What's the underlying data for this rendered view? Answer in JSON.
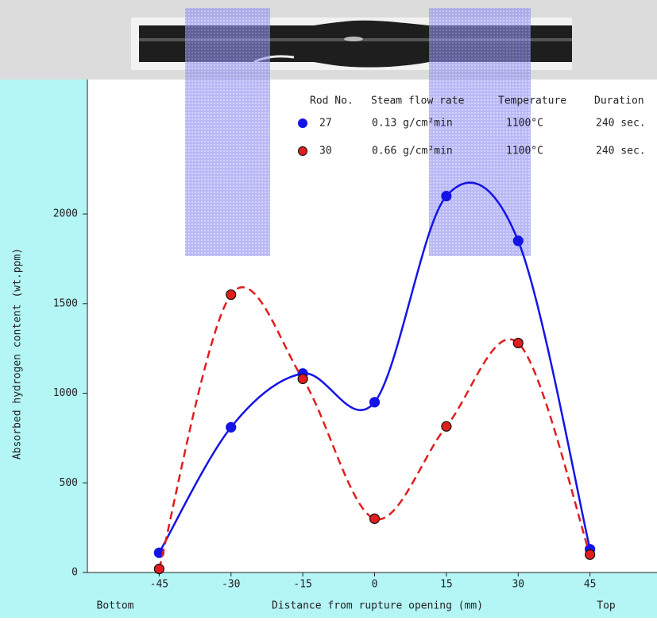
{
  "chart_data": {
    "type": "line",
    "x_label": "Distance from rupture opening (mm)",
    "y_label": "Absorbed hydrogen content (wt.ppm)",
    "x_end_labels": [
      "Bottom",
      "Top"
    ],
    "legend_headers": [
      "Rod No.",
      "Steam flow rate",
      "Temperature",
      "Duration"
    ],
    "legend_rows": [
      [
        "27",
        "0.13 g/cm²min",
        "1100°C",
        "240 sec."
      ],
      [
        "30",
        "0.66 g/cm²min",
        "1100°C",
        "240 sec."
      ]
    ],
    "x": [
      -45,
      -30,
      -15,
      0,
      15,
      30,
      45
    ],
    "series": [
      {
        "name": "27",
        "color": "#1414e6",
        "style": "solid",
        "values": [
          110,
          810,
          1110,
          950,
          2100,
          1850,
          130
        ]
      },
      {
        "name": "30",
        "color": "#e01e1e",
        "style": "dashed",
        "values": [
          20,
          1550,
          1080,
          300,
          815,
          1280,
          100
        ]
      }
    ],
    "xlim": [
      -60,
      59
    ],
    "ylim": [
      0,
      2750
    ],
    "xticks": [
      -45,
      -30,
      -15,
      0,
      15,
      30,
      45
    ],
    "yticks": [
      0,
      500,
      1000,
      1500,
      2000
    ]
  }
}
